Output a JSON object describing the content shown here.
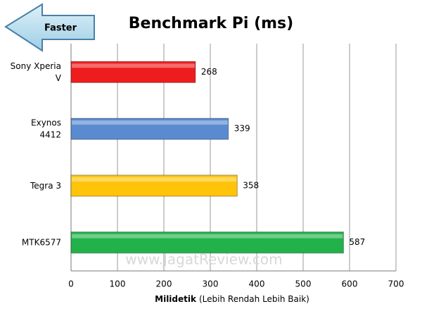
{
  "chart_data": {
    "type": "bar",
    "orientation": "horizontal",
    "title": "Benchmark Pi (ms)",
    "annotation": "Faster",
    "watermark": "www.JagatReview.com",
    "categories": [
      "Sony Xperia\nV",
      "Exynos\n4412",
      "Tegra 3",
      "MTK6577"
    ],
    "values": [
      268,
      339,
      358,
      587
    ],
    "colors": [
      "#ee1c1c",
      "#5a8ad0",
      "#ffc40a",
      "#22b24a"
    ],
    "x_label": "Milidetik",
    "x_label_note": "(Lebih Rendah Lebih Baik)",
    "xlim": [
      0,
      700
    ],
    "xticks": [
      0,
      100,
      200,
      300,
      400,
      500,
      600,
      700
    ],
    "grid": true
  }
}
